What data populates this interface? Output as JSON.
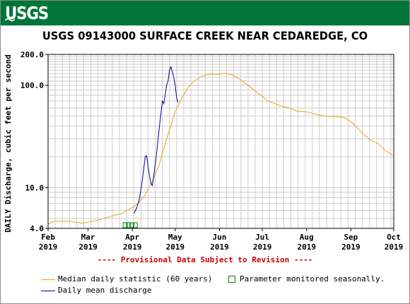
{
  "header": {
    "logo_text": "USGS",
    "brand_color": "#00753a"
  },
  "chart_data": {
    "type": "line",
    "title": "USGS 09143000 SURFACE CREEK NEAR CEDAREDGE, CO",
    "ylabel": "DAILY Discharge, cubic feet per second",
    "xlabel": "",
    "y_scale": "log",
    "ylim": [
      4.0,
      200.0
    ],
    "xlim": [
      "2019-02-01",
      "2019-10-01"
    ],
    "y_tick_labels": [
      "4.0",
      "10.0",
      "100.0",
      "200.0"
    ],
    "y_tick_values": [
      4,
      10,
      100,
      200
    ],
    "x_ticks": [
      {
        "date": "2019-02-01",
        "month": "Feb",
        "year": "2019"
      },
      {
        "date": "2019-03-01",
        "month": "Mar",
        "year": "2019"
      },
      {
        "date": "2019-04-01",
        "month": "Apr",
        "year": "2019"
      },
      {
        "date": "2019-05-01",
        "month": "May",
        "year": "2019"
      },
      {
        "date": "2019-06-01",
        "month": "Jun",
        "year": "2019"
      },
      {
        "date": "2019-07-01",
        "month": "Jul",
        "year": "2019"
      },
      {
        "date": "2019-08-01",
        "month": "Aug",
        "year": "2019"
      },
      {
        "date": "2019-09-01",
        "month": "Sep",
        "year": "2019"
      },
      {
        "date": "2019-10-01",
        "month": "Oct",
        "year": "2019"
      }
    ],
    "grid": true,
    "series": [
      {
        "name": "Median daily statistic (60 years)",
        "color": "#e8a317",
        "points": [
          [
            "2019-02-01",
            4.4
          ],
          [
            "2019-02-05",
            4.7
          ],
          [
            "2019-02-15",
            4.7
          ],
          [
            "2019-02-25",
            4.5
          ],
          [
            "2019-03-01",
            4.6
          ],
          [
            "2019-03-10",
            4.9
          ],
          [
            "2019-03-18",
            5.3
          ],
          [
            "2019-03-25",
            5.6
          ],
          [
            "2019-04-01",
            6.4
          ],
          [
            "2019-04-05",
            7.0
          ],
          [
            "2019-04-10",
            8.5
          ],
          [
            "2019-04-15",
            11.5
          ],
          [
            "2019-04-20",
            17.0
          ],
          [
            "2019-04-25",
            30.0
          ],
          [
            "2019-05-01",
            55.0
          ],
          [
            "2019-05-05",
            72.0
          ],
          [
            "2019-05-10",
            95.0
          ],
          [
            "2019-05-15",
            112.0
          ],
          [
            "2019-05-20",
            123.0
          ],
          [
            "2019-05-25",
            128.0
          ],
          [
            "2019-06-01",
            128.0
          ],
          [
            "2019-06-05",
            131.0
          ],
          [
            "2019-06-10",
            126.0
          ],
          [
            "2019-06-15",
            115.0
          ],
          [
            "2019-06-20",
            102.0
          ],
          [
            "2019-06-25",
            90.0
          ],
          [
            "2019-07-01",
            78.0
          ],
          [
            "2019-07-05",
            70.0
          ],
          [
            "2019-07-10",
            66.0
          ],
          [
            "2019-07-15",
            62.0
          ],
          [
            "2019-07-20",
            60.0
          ],
          [
            "2019-07-25",
            56.0
          ],
          [
            "2019-08-01",
            55.0
          ],
          [
            "2019-08-10",
            51.0
          ],
          [
            "2019-08-15",
            50.0
          ],
          [
            "2019-08-20",
            49.5
          ],
          [
            "2019-08-25",
            49.0
          ],
          [
            "2019-08-28",
            48.0
          ],
          [
            "2019-09-01",
            44.0
          ],
          [
            "2019-09-05",
            39.0
          ],
          [
            "2019-09-10",
            33.0
          ],
          [
            "2019-09-15",
            29.0
          ],
          [
            "2019-09-20",
            27.0
          ],
          [
            "2019-09-25",
            23.0
          ],
          [
            "2019-09-30",
            21.0
          ]
        ]
      },
      {
        "name": "Daily mean discharge",
        "color": "#000099",
        "points": [
          [
            "2019-04-02",
            5.6
          ],
          [
            "2019-04-04",
            6.3
          ],
          [
            "2019-04-06",
            7.8
          ],
          [
            "2019-04-08",
            12.0
          ],
          [
            "2019-04-10",
            20.0
          ],
          [
            "2019-04-11",
            20.5
          ],
          [
            "2019-04-12",
            16.0
          ],
          [
            "2019-04-13",
            13.0
          ],
          [
            "2019-04-14",
            11.0
          ],
          [
            "2019-04-15",
            10.5
          ],
          [
            "2019-04-16",
            13.0
          ],
          [
            "2019-04-18",
            22.0
          ],
          [
            "2019-04-20",
            40.0
          ],
          [
            "2019-04-22",
            70.0
          ],
          [
            "2019-04-23",
            66.0
          ],
          [
            "2019-04-25",
            100.0
          ],
          [
            "2019-04-26",
            110.0
          ],
          [
            "2019-04-27",
            140.0
          ],
          [
            "2019-04-28",
            152.0
          ],
          [
            "2019-04-29",
            135.0
          ],
          [
            "2019-04-30",
            120.0
          ],
          [
            "2019-05-01",
            100.0
          ],
          [
            "2019-05-02",
            75.0
          ],
          [
            "2019-05-03",
            68.0
          ]
        ]
      }
    ],
    "seasonal_markers": {
      "from": "2019-03-27",
      "to": "2019-04-03",
      "value": 4.0,
      "color": "#008000"
    }
  },
  "provisional_text": "---- Provisional Data Subject to Revision ----",
  "legend": {
    "median_label": "Median daily statistic (60 years)",
    "seasonal_label": "Parameter monitored seasonally.",
    "daily_label": "Daily mean discharge"
  }
}
